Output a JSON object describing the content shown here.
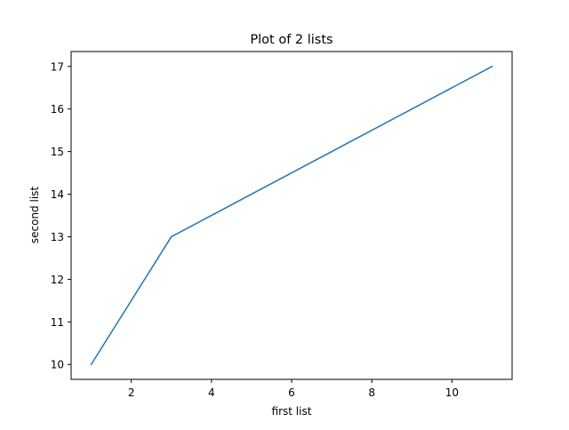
{
  "chart_data": {
    "type": "line",
    "title": "Plot of 2 lists",
    "xlabel": "first list",
    "ylabel": "second list",
    "x": [
      1,
      3,
      11
    ],
    "series": [
      {
        "name": "second list",
        "values": [
          10,
          13,
          17
        ],
        "color": "#1f77b4"
      }
    ],
    "xlim": [
      0.5,
      11.5
    ],
    "ylim": [
      9.65,
      17.35
    ],
    "xticks": [
      2,
      4,
      6,
      8,
      10
    ],
    "xtick_labels": [
      "2",
      "4",
      "6",
      "8",
      "10"
    ],
    "yticks": [
      10,
      11,
      12,
      13,
      14,
      15,
      16,
      17
    ],
    "ytick_labels": [
      "10",
      "11",
      "12",
      "13",
      "14",
      "15",
      "16",
      "17"
    ],
    "grid": false,
    "legend": false
  }
}
